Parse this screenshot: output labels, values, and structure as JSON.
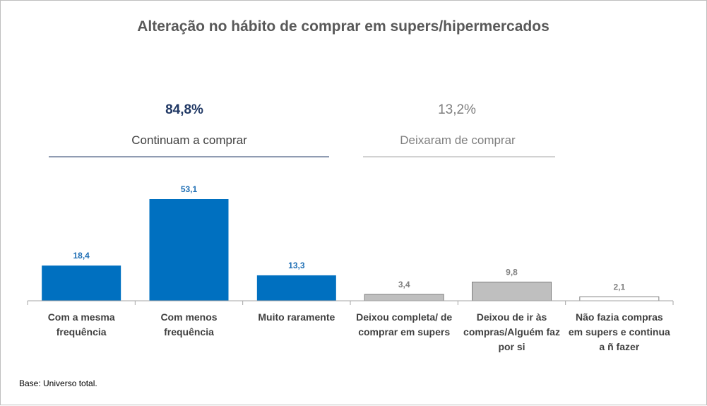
{
  "chart_data": {
    "type": "bar",
    "title": "Alteração no hábito de comprar em supers/hipermercados",
    "categories": [
      [
        "Com a mesma",
        "frequência"
      ],
      [
        "Com menos",
        "frequência"
      ],
      [
        "Muito raramente"
      ],
      [
        "Deixou completa/ de",
        "comprar em supers"
      ],
      [
        "Deixou de ir às",
        "compras/Alguém faz",
        "por si"
      ],
      [
        "Não fazia compras",
        "em supers e continua",
        "a ñ fazer"
      ]
    ],
    "values": [
      18.4,
      53.1,
      13.3,
      3.4,
      9.8,
      2.1
    ],
    "value_labels": [
      "18,4",
      "53,1",
      "13,3",
      "3,4",
      "9,8",
      "2,1"
    ],
    "groups": [
      {
        "value": "84,8%",
        "label": "Continuam a comprar",
        "color": "#203864",
        "label_color": "#404040",
        "category_indices": [
          0,
          1,
          2
        ]
      },
      {
        "value": "13,2%",
        "label": "Deixaram de comprar",
        "color": "#7f7f7f",
        "label_color": "#7f7f7f",
        "category_indices": [
          3,
          4,
          5
        ]
      }
    ],
    "colors": [
      "#0070c0",
      "#0070c0",
      "#0070c0",
      "#bfbfbf",
      "#bfbfbf",
      "#ffffff"
    ],
    "label_colors": [
      "#1f6fb5",
      "#1f6fb5",
      "#1f6fb5",
      "#7f7f7f",
      "#7f7f7f",
      "#7f7f7f"
    ],
    "grid": false,
    "legend": "none"
  },
  "footer": {
    "note": "Base: Universo total."
  }
}
